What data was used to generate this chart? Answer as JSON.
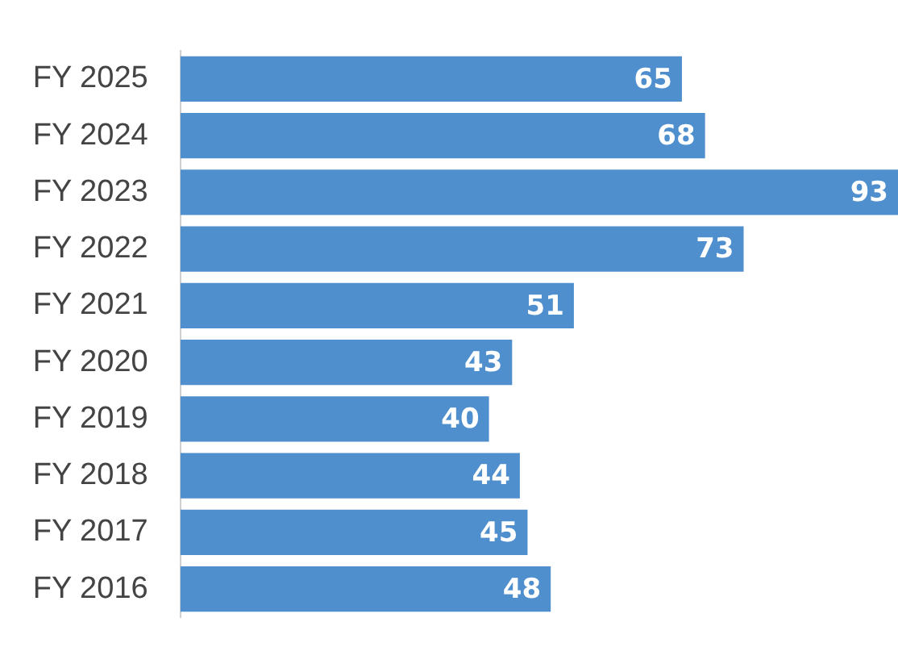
{
  "chart_data": {
    "type": "bar",
    "orientation": "horizontal",
    "categories": [
      "FY 2025",
      "FY 2024",
      "FY 2023",
      "FY 2022",
      "FY 2021",
      "FY 2020",
      "FY 2019",
      "FY 2018",
      "FY 2017",
      "FY 2016"
    ],
    "values": [
      65,
      68,
      93,
      73,
      51,
      43,
      40,
      44,
      45,
      48
    ],
    "color": "#4f8fce",
    "data_labels": true,
    "legend": false,
    "tick_labels": "y"
  }
}
